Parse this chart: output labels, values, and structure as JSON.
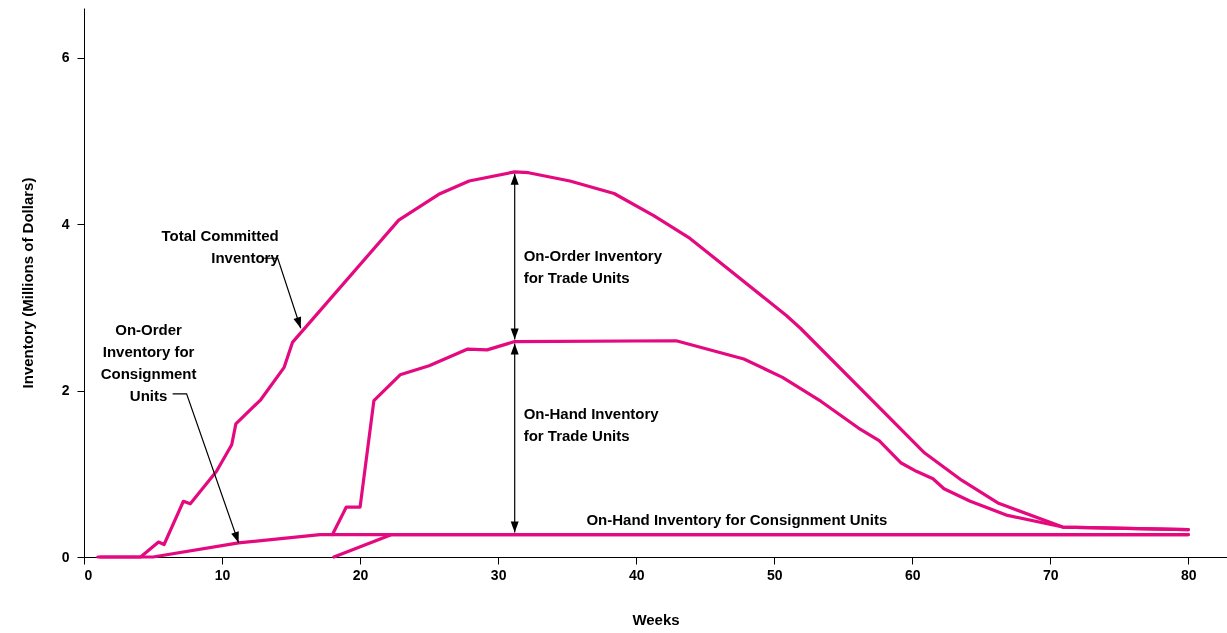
{
  "chart_data": {
    "type": "line",
    "xlabel": "Weeks",
    "ylabel": "Inventory (Millions of Dollars)",
    "xlim": [
      0,
      82.8
    ],
    "ylim": [
      0,
      6.6
    ],
    "xticks": [
      0,
      10,
      20,
      30,
      40,
      50,
      60,
      70,
      80
    ],
    "yticks": [
      0,
      2,
      4,
      6
    ],
    "line_style": "solid",
    "series": [
      {
        "color": "#e5097f",
        "x": [
          1.2,
          4.1,
          5.4,
          5.8,
          7.2,
          7.7,
          9.6,
          10.7,
          11,
          12.8,
          14.5,
          15.1,
          22.8,
          25.7,
          27.9,
          31.2,
          32.2,
          35.2,
          38.4,
          41.3,
          43.9,
          50.9,
          51.9,
          60.9,
          63.6,
          66.2,
          70.9,
          80
        ],
        "values": [
          0,
          0,
          0.18,
          0.15,
          0.67,
          0.64,
          1.03,
          1.35,
          1.6,
          1.89,
          2.28,
          2.58,
          4.05,
          4.36,
          4.52,
          4.63,
          4.62,
          4.52,
          4.37,
          4.1,
          3.83,
          2.9,
          2.75,
          1.25,
          0.92,
          0.65,
          0.36,
          0.33
        ]
      },
      {
        "color": "#e5097f",
        "x": [
          18,
          19,
          20,
          21,
          22.9,
          25,
          27.8,
          29.2,
          31.2,
          42.9,
          47.8,
          50.6,
          53.4,
          56.1,
          57.6,
          59.2,
          60.3,
          61.5,
          62.3,
          64.2,
          66.9,
          70.9,
          80
        ],
        "values": [
          0.27,
          0.6,
          0.6,
          1.88,
          2.19,
          2.3,
          2.5,
          2.49,
          2.59,
          2.6,
          2.38,
          2.16,
          1.87,
          1.55,
          1.4,
          1.13,
          1.03,
          0.94,
          0.82,
          0.67,
          0.5,
          0.36,
          0.33
        ]
      },
      {
        "color": "#e5097f",
        "x": [
          1,
          5,
          11.2,
          17.1,
          31.2,
          80
        ],
        "values": [
          0,
          0,
          0.17,
          0.27,
          0.27,
          0.27
        ]
      },
      {
        "color": "#e5097f",
        "x": [
          18.1,
          22.3,
          31.2,
          80
        ],
        "values": [
          0,
          0.27,
          0.27,
          0.27
        ]
      }
    ],
    "annotations": [
      {
        "text": "Total Committed\nInventory",
        "x": 15.7,
        "y": 2.75
      },
      {
        "text": "On-Order\nInventory for\nConsignment\nUnits",
        "x": 11.2,
        "y": 0.17
      },
      "On-Order Inventory\nfor Trade Units",
      "On-Hand Inventory\nfor Trade Units",
      {
        "text": "On-Hand Inventory for Consignment Units",
        "x": 47.8,
        "y": 0.27
      }
    ]
  }
}
